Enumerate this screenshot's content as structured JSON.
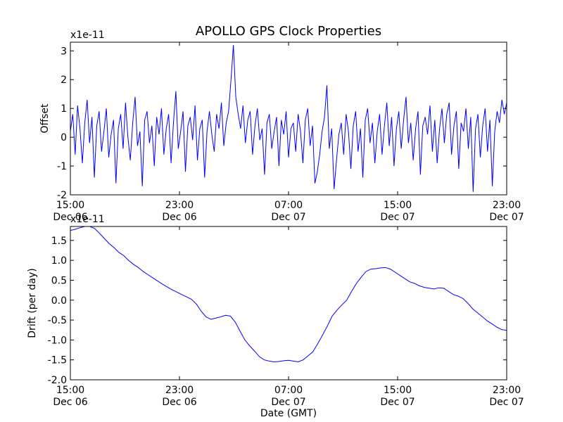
{
  "chart_data": [
    {
      "type": "line",
      "title": "APOLLO GPS Clock Properties",
      "ylabel": "Offset",
      "xlabel": "",
      "scale_label": "x1e-11",
      "ylim": [
        -2,
        3.3
      ],
      "xlim": [
        0,
        1.0
      ],
      "grid": false,
      "yticks": [
        {
          "v": -2,
          "label": "-2"
        },
        {
          "v": -1,
          "label": "-1"
        },
        {
          "v": 0,
          "label": "0"
        },
        {
          "v": 1,
          "label": "1"
        },
        {
          "v": 2,
          "label": "2"
        },
        {
          "v": 3,
          "label": "3"
        }
      ],
      "xticks": [
        {
          "v": 0.0,
          "time": "15:00",
          "date": "Dec 06"
        },
        {
          "v": 0.25,
          "time": "23:00",
          "date": "Dec 06"
        },
        {
          "v": 0.5,
          "time": "07:00",
          "date": "Dec 07"
        },
        {
          "v": 0.75,
          "time": "15:00",
          "date": "Dec 07"
        },
        {
          "v": 1.0,
          "time": "23:00",
          "date": "Dec 07"
        }
      ],
      "series": [
        {
          "color": "#0000ff",
          "values": [
            0.2,
            0.8,
            -0.6,
            1.1,
            0.3,
            -0.9,
            0.5,
            1.3,
            -0.2,
            0.7,
            -1.4,
            0.4,
            0.9,
            -0.5,
            0.2,
            1.0,
            -0.7,
            0.1,
            0.6,
            -1.6,
            0.3,
            0.8,
            -0.4,
            1.2,
            0.0,
            -0.8,
            0.5,
            1.4,
            -0.3,
            0.2,
            -1.7,
            0.6,
            0.9,
            -0.2,
            0.4,
            -1.0,
            0.7,
            0.1,
            1.0,
            -0.6,
            0.3,
            0.8,
            -0.9,
            0.5,
            1.6,
            -0.4,
            0.2,
            0.9,
            -1.2,
            0.4,
            0.7,
            -0.1,
            1.1,
            -0.8,
            0.3,
            0.6,
            -1.4,
            0.2,
            0.9,
            0.1,
            -0.5,
            0.8,
            0.3,
            1.2,
            -0.3,
            0.5,
            0.9,
            2.0,
            3.2,
            1.4,
            0.8,
            0.3,
            1.1,
            -0.2,
            0.6,
            0.9,
            -0.6,
            0.4,
            1.0,
            -0.1,
            0.3,
            -1.3,
            0.5,
            0.8,
            -0.4,
            0.2,
            0.7,
            -1.0,
            0.6,
            0.1,
            0.9,
            -0.7,
            0.3,
            0.5,
            -0.5,
            0.8,
            0.2,
            -0.9,
            0.6,
            1.0,
            -0.3,
            0.4,
            -1.6,
            -1.2,
            -0.6,
            0.2,
            0.7,
            1.8,
            -0.4,
            0.3,
            -1.8,
            -0.8,
            0.1,
            0.5,
            -0.6,
            0.8,
            0.2,
            -1.1,
            0.4,
            0.9,
            -0.5,
            0.3,
            -1.4,
            0.6,
            1.0,
            -0.2,
            0.5,
            -0.9,
            0.2,
            0.8,
            -0.6,
            0.4,
            1.2,
            -0.3,
            0.7,
            -1.0,
            0.3,
            0.9,
            -0.4,
            0.6,
            1.4,
            -0.2,
            0.5,
            -0.8,
            0.3,
            0.9,
            -1.3,
            0.4,
            0.7,
            0.1,
            1.1,
            -0.5,
            0.6,
            -0.9,
            0.3,
            1.0,
            -0.2,
            0.8,
            1.2,
            -0.6,
            0.4,
            0.9,
            -1.1,
            0.5,
            0.2,
            1.0,
            -0.4,
            0.7,
            -1.9,
            0.3,
            0.8,
            -0.7,
            0.4,
            1.0,
            -0.5,
            0.6,
            -1.7,
            0.2,
            0.9,
            0.5,
            1.3,
            0.8,
            1.2
          ]
        }
      ]
    },
    {
      "type": "line",
      "title": "",
      "ylabel": "Drift (per day)",
      "xlabel": "Date (GMT)",
      "scale_label": "x1e-11",
      "ylim": [
        -2.0,
        1.85
      ],
      "xlim": [
        0,
        1.0
      ],
      "grid": false,
      "yticks": [
        {
          "v": -2.0,
          "label": "-2.0"
        },
        {
          "v": -1.5,
          "label": "-1.5"
        },
        {
          "v": -1.0,
          "label": "-1.0"
        },
        {
          "v": -0.5,
          "label": "-0.5"
        },
        {
          "v": 0.0,
          "label": "0.0"
        },
        {
          "v": 0.5,
          "label": "0.5"
        },
        {
          "v": 1.0,
          "label": "1.0"
        },
        {
          "v": 1.5,
          "label": "1.5"
        }
      ],
      "xticks": [
        {
          "v": 0.0,
          "time": "15:00",
          "date": "Dec 06"
        },
        {
          "v": 0.25,
          "time": "23:00",
          "date": "Dec 06"
        },
        {
          "v": 0.5,
          "time": "07:00",
          "date": "Dec 07"
        },
        {
          "v": 0.75,
          "time": "15:00",
          "date": "Dec 07"
        },
        {
          "v": 1.0,
          "time": "23:00",
          "date": "Dec 07"
        }
      ],
      "series": [
        {
          "color": "#0000ff",
          "values": [
            1.75,
            1.78,
            1.82,
            1.85,
            1.85,
            1.8,
            1.68,
            1.55,
            1.42,
            1.32,
            1.2,
            1.12,
            1.0,
            0.9,
            0.82,
            0.72,
            0.64,
            0.56,
            0.48,
            0.4,
            0.33,
            0.26,
            0.2,
            0.14,
            0.08,
            0.02,
            -0.1,
            -0.28,
            -0.42,
            -0.48,
            -0.45,
            -0.42,
            -0.38,
            -0.4,
            -0.55,
            -0.78,
            -1.0,
            -1.15,
            -1.28,
            -1.42,
            -1.5,
            -1.53,
            -1.55,
            -1.54,
            -1.52,
            -1.51,
            -1.53,
            -1.55,
            -1.5,
            -1.4,
            -1.3,
            -1.1,
            -0.88,
            -0.65,
            -0.4,
            -0.25,
            -0.12,
            0.0,
            0.22,
            0.42,
            0.58,
            0.72,
            0.78,
            0.79,
            0.81,
            0.82,
            0.78,
            0.7,
            0.62,
            0.54,
            0.46,
            0.42,
            0.36,
            0.32,
            0.3,
            0.28,
            0.31,
            0.3,
            0.22,
            0.14,
            0.1,
            0.04,
            -0.08,
            -0.22,
            -0.32,
            -0.42,
            -0.52,
            -0.6,
            -0.68,
            -0.74,
            -0.76
          ]
        }
      ]
    }
  ]
}
